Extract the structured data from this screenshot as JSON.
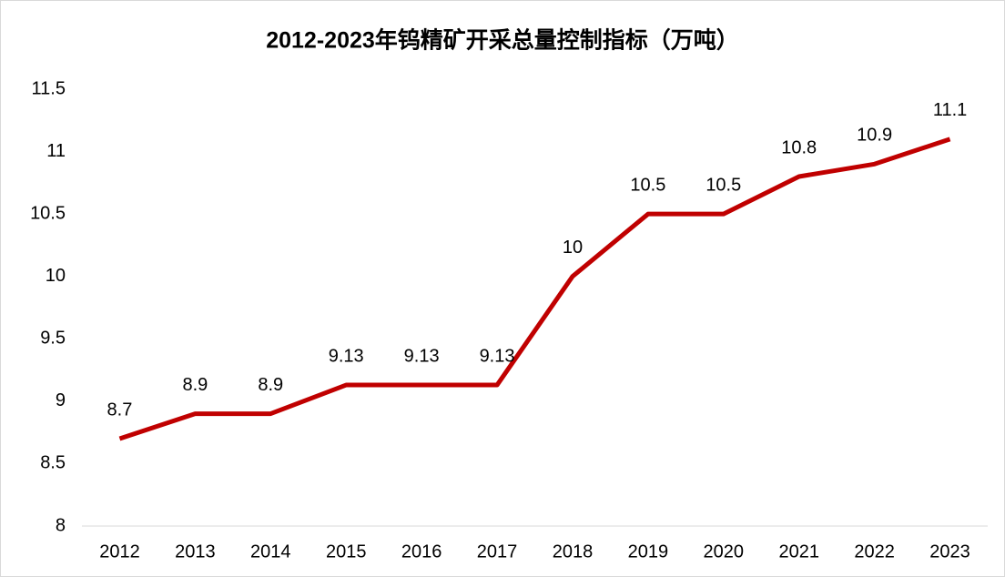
{
  "chart_data": {
    "type": "line",
    "title": "2012-2023年钨精矿开采总量控制指标（万吨）",
    "categories": [
      "2012",
      "2013",
      "2014",
      "2015",
      "2016",
      "2017",
      "2018",
      "2019",
      "2020",
      "2021",
      "2022",
      "2023"
    ],
    "series": [
      {
        "name": "钨精矿开采总量控制指标",
        "color": "#c00000",
        "values": [
          8.7,
          8.9,
          8.9,
          9.13,
          9.13,
          9.13,
          10,
          10.5,
          10.5,
          10.8,
          10.9,
          11.1
        ]
      }
    ],
    "ylim": [
      8,
      11.5
    ],
    "yticks": [
      8,
      8.5,
      9,
      9.5,
      10,
      10.5,
      11,
      11.5
    ],
    "grid": false
  }
}
